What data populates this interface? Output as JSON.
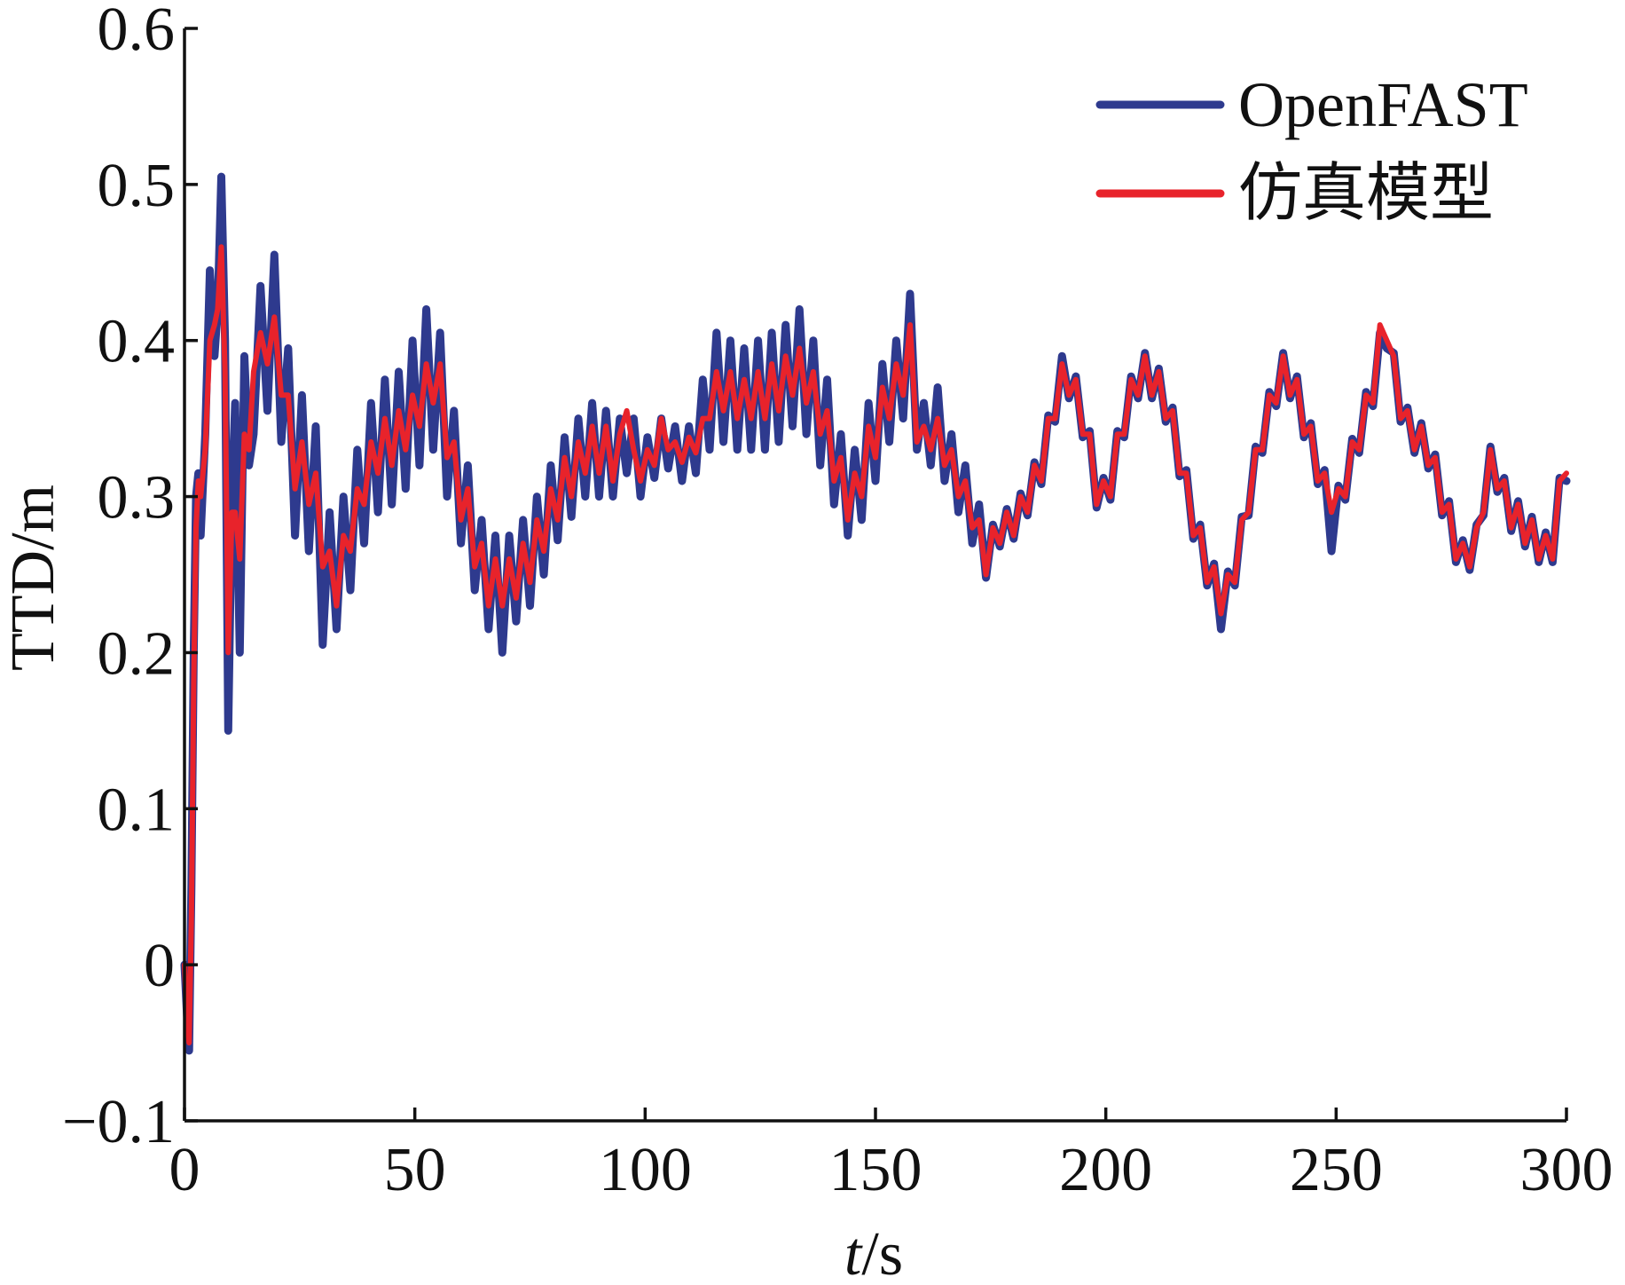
{
  "chart_data": {
    "type": "line",
    "title": "",
    "xlabel": "t/s",
    "ylabel": "TTD/m",
    "xlim": [
      0,
      300
    ],
    "ylim": [
      -0.1,
      0.6
    ],
    "xticks": [
      0,
      50,
      100,
      150,
      200,
      250,
      300
    ],
    "xtick_labels": [
      "0",
      "50",
      "100",
      "150",
      "200",
      "250",
      "300"
    ],
    "yticks": [
      -0.1,
      0,
      0.1,
      0.2,
      0.3,
      0.4,
      0.5,
      0.6
    ],
    "ytick_labels": [
      "−0.1",
      "0",
      "0.1",
      "0.2",
      "0.3",
      "0.4",
      "0.5",
      "0.6"
    ],
    "grid": false,
    "legend": "top-right",
    "x": [
      0,
      0.5,
      1,
      1.5,
      2,
      2.5,
      3,
      3.5,
      4.5,
      5.5,
      6.5,
      7.2,
      8,
      8.8,
      9.5,
      10.3,
      11,
      12,
      13,
      14,
      15,
      16.5,
      18,
      19.5,
      21,
      22.5,
      24,
      25.5,
      27,
      28.5,
      30,
      31.5,
      33,
      34.5,
      36,
      37.5,
      39,
      40.5,
      42,
      43.5,
      45,
      46.5,
      48,
      49.5,
      51,
      52.5,
      54,
      55.5,
      57,
      58.5,
      60,
      61.5,
      63,
      64.5,
      66,
      67.5,
      69,
      70.5,
      72,
      73.5,
      75,
      76.5,
      78,
      79.5,
      81,
      82.5,
      84,
      85.5,
      87,
      88.5,
      90,
      91.5,
      93,
      94.5,
      96,
      97.5,
      99,
      100.5,
      102,
      103.5,
      105,
      106.5,
      108,
      109.5,
      111,
      112.5,
      114,
      115.5,
      117,
      118.5,
      120,
      121.5,
      123,
      124.5,
      126,
      127.5,
      129,
      130.5,
      132,
      133.5,
      135,
      136.5,
      138,
      139.5,
      141,
      142.5,
      144,
      145.5,
      147,
      148.5,
      150,
      151.5,
      153,
      154.5,
      156,
      157.5,
      159,
      160.5,
      162,
      163.5,
      165,
      166.5,
      168,
      169.5,
      171,
      172.5,
      174,
      175.5,
      177,
      178.5,
      180,
      181.5,
      183,
      184.5,
      186,
      187.5,
      189,
      190.5,
      192,
      193.5,
      195,
      196.5,
      198,
      199.5,
      201,
      202.5,
      204,
      205.5,
      207,
      208.5,
      210,
      211.5,
      213,
      214.5,
      216,
      217.5,
      219,
      220.5,
      222,
      223.5,
      225,
      226.5,
      228,
      229.5,
      231,
      232.5,
      234,
      235.5,
      237,
      238.5,
      240,
      241.5,
      243,
      244.5,
      246,
      247.5,
      249,
      250.5,
      252,
      253.5,
      255,
      256.5,
      258,
      259.5,
      261,
      262.5,
      264,
      265.5,
      267,
      268.5,
      270,
      271.5,
      273,
      274.5,
      276,
      277.5,
      279,
      280.5,
      282,
      283.5,
      285,
      286.5,
      288,
      289.5,
      291,
      292.5,
      294,
      295.5,
      297,
      298.5,
      300
    ],
    "series": [
      {
        "name": "OpenFAST",
        "color": "#2e3a8e",
        "values": [
          0,
          -0.03,
          -0.055,
          0.05,
          0.2,
          0.3,
          0.315,
          0.275,
          0.34,
          0.445,
          0.39,
          0.42,
          0.505,
          0.4,
          0.15,
          0.3,
          0.36,
          0.2,
          0.39,
          0.32,
          0.34,
          0.435,
          0.355,
          0.455,
          0.335,
          0.395,
          0.275,
          0.365,
          0.265,
          0.345,
          0.205,
          0.29,
          0.215,
          0.3,
          0.24,
          0.33,
          0.27,
          0.36,
          0.29,
          0.375,
          0.295,
          0.38,
          0.305,
          0.4,
          0.32,
          0.42,
          0.33,
          0.405,
          0.3,
          0.355,
          0.27,
          0.32,
          0.24,
          0.285,
          0.215,
          0.275,
          0.2,
          0.275,
          0.22,
          0.285,
          0.23,
          0.3,
          0.25,
          0.32,
          0.272,
          0.338,
          0.287,
          0.35,
          0.3,
          0.36,
          0.3,
          0.355,
          0.3,
          0.35,
          0.315,
          0.35,
          0.3,
          0.338,
          0.312,
          0.35,
          0.318,
          0.345,
          0.31,
          0.345,
          0.315,
          0.375,
          0.33,
          0.405,
          0.335,
          0.4,
          0.33,
          0.395,
          0.33,
          0.4,
          0.33,
          0.405,
          0.335,
          0.41,
          0.345,
          0.42,
          0.34,
          0.4,
          0.32,
          0.375,
          0.295,
          0.34,
          0.275,
          0.33,
          0.285,
          0.36,
          0.31,
          0.385,
          0.335,
          0.4,
          0.35,
          0.43,
          0.33,
          0.36,
          0.32,
          0.37,
          0.31,
          0.34,
          0.29,
          0.32,
          0.27,
          0.295,
          0.248,
          0.282,
          0.268,
          0.292,
          0.273,
          0.302,
          0.288,
          0.322,
          0.308,
          0.352,
          0.348,
          0.39,
          0.363,
          0.377,
          0.338,
          0.342,
          0.293,
          0.312,
          0.298,
          0.342,
          0.338,
          0.377,
          0.363,
          0.392,
          0.363,
          0.382,
          0.348,
          0.357,
          0.313,
          0.317,
          0.273,
          0.282,
          0.243,
          0.257,
          0.215,
          0.252,
          0.243,
          0.287,
          0.288,
          0.332,
          0.328,
          0.367,
          0.358,
          0.392,
          0.363,
          0.377,
          0.338,
          0.347,
          0.308,
          0.317,
          0.265,
          0.307,
          0.298,
          0.337,
          0.328,
          0.367,
          0.358,
          0.405,
          0.395,
          0.392,
          0.348,
          0.357,
          0.328,
          0.347,
          0.318,
          0.327,
          0.288,
          0.297,
          0.258,
          0.272,
          0.253,
          0.282,
          0.288,
          0.332,
          0.303,
          0.312,
          0.278,
          0.297,
          0.268,
          0.287,
          0.258,
          0.277,
          0.258,
          0.312,
          0.31
        ]
      },
      {
        "name": "仿真模型",
        "color": "#e8232b",
        "values": [
          0,
          -0.035,
          -0.05,
          0.03,
          0.18,
          0.28,
          0.31,
          0.3,
          0.33,
          0.4,
          0.41,
          0.42,
          0.46,
          0.38,
          0.2,
          0.29,
          0.29,
          0.26,
          0.34,
          0.33,
          0.38,
          0.405,
          0.385,
          0.415,
          0.365,
          0.365,
          0.305,
          0.335,
          0.295,
          0.315,
          0.255,
          0.265,
          0.23,
          0.275,
          0.265,
          0.305,
          0.295,
          0.335,
          0.315,
          0.35,
          0.32,
          0.355,
          0.33,
          0.365,
          0.345,
          0.385,
          0.36,
          0.385,
          0.325,
          0.335,
          0.285,
          0.305,
          0.255,
          0.27,
          0.23,
          0.26,
          0.23,
          0.26,
          0.235,
          0.27,
          0.245,
          0.285,
          0.265,
          0.305,
          0.285,
          0.325,
          0.3,
          0.335,
          0.315,
          0.345,
          0.315,
          0.345,
          0.31,
          0.34,
          0.355,
          0.33,
          0.31,
          0.33,
          0.32,
          0.35,
          0.33,
          0.335,
          0.322,
          0.338,
          0.328,
          0.35,
          0.35,
          0.38,
          0.355,
          0.38,
          0.35,
          0.375,
          0.35,
          0.38,
          0.35,
          0.385,
          0.355,
          0.39,
          0.365,
          0.395,
          0.36,
          0.38,
          0.34,
          0.355,
          0.31,
          0.325,
          0.285,
          0.315,
          0.3,
          0.345,
          0.325,
          0.37,
          0.35,
          0.385,
          0.365,
          0.41,
          0.335,
          0.345,
          0.33,
          0.35,
          0.32,
          0.33,
          0.3,
          0.31,
          0.28,
          0.285,
          0.25,
          0.28,
          0.27,
          0.29,
          0.275,
          0.3,
          0.29,
          0.32,
          0.31,
          0.35,
          0.35,
          0.385,
          0.365,
          0.375,
          0.34,
          0.34,
          0.295,
          0.31,
          0.3,
          0.34,
          0.34,
          0.375,
          0.365,
          0.39,
          0.365,
          0.38,
          0.35,
          0.355,
          0.315,
          0.315,
          0.275,
          0.28,
          0.245,
          0.255,
          0.225,
          0.25,
          0.245,
          0.285,
          0.29,
          0.33,
          0.33,
          0.365,
          0.36,
          0.39,
          0.365,
          0.375,
          0.34,
          0.345,
          0.31,
          0.315,
          0.29,
          0.305,
          0.3,
          0.335,
          0.33,
          0.365,
          0.36,
          0.41,
          0.4,
          0.39,
          0.35,
          0.355,
          0.33,
          0.345,
          0.32,
          0.325,
          0.29,
          0.295,
          0.26,
          0.27,
          0.255,
          0.28,
          0.29,
          0.33,
          0.305,
          0.31,
          0.28,
          0.295,
          0.27,
          0.285,
          0.26,
          0.275,
          0.26,
          0.31,
          0.315
        ]
      }
    ]
  }
}
